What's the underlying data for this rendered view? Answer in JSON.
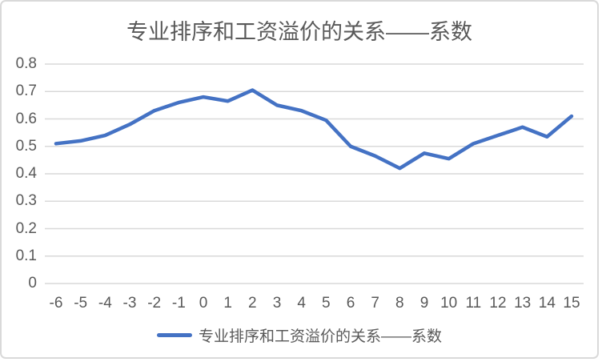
{
  "title": {
    "text": "专业排序和工资溢价的关系——系数"
  },
  "legend": {
    "label": "专业排序和工资溢价的关系——系数"
  },
  "colors": {
    "line": "#4472C4",
    "grid": "#d9d9d9",
    "axis": "#d9d9d9",
    "text": "#595959",
    "frame_border": "#d9d9d9",
    "background": "#ffffff"
  },
  "chart_data": {
    "type": "line",
    "title": "专业排序和工资溢价的关系——系数",
    "xlabel": "",
    "ylabel": "",
    "categories": [
      "-6",
      "-5",
      "-4",
      "-3",
      "-2",
      "-1",
      "0",
      "1",
      "2",
      "3",
      "4",
      "5",
      "6",
      "7",
      "8",
      "9",
      "10",
      "11",
      "12",
      "13",
      "14",
      "15"
    ],
    "series": [
      {
        "name": "专业排序和工资溢价的关系——系数",
        "color": "#4472C4",
        "values": [
          0.51,
          0.52,
          0.54,
          0.58,
          0.63,
          0.66,
          0.68,
          0.665,
          0.705,
          0.65,
          0.63,
          0.595,
          0.5,
          0.465,
          0.42,
          0.475,
          0.455,
          0.51,
          0.54,
          0.57,
          0.535,
          0.61
        ]
      }
    ],
    "ylim": [
      0,
      0.8
    ],
    "ytick_step": 0.1,
    "ytick_labels": [
      "0.8",
      "0.7",
      "0.6",
      "0.5",
      "0.4",
      "0.3",
      "0.2",
      "0.1",
      "0"
    ],
    "grid": true,
    "legend_position": "bottom"
  }
}
